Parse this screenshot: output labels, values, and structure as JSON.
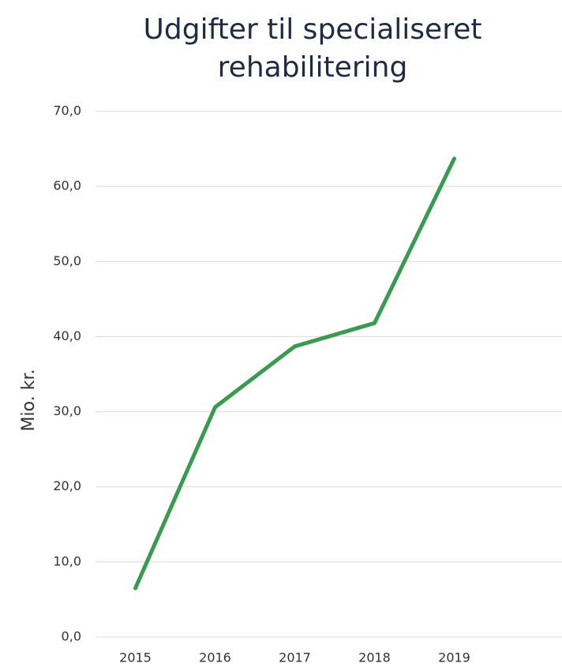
{
  "chart_data": {
    "type": "line",
    "title": "Udgifter til specialiseret rehabilitering",
    "y_label": "Mio. kr.",
    "categories": [
      "2015",
      "2016",
      "2017",
      "2018",
      "2019"
    ],
    "series": [
      {
        "name": "Udgifter",
        "color": "#3a9a4f",
        "values": [
          6.5,
          30.6,
          38.7,
          41.8,
          63.7
        ]
      }
    ],
    "ylim": [
      0,
      70
    ],
    "yticks": [
      {
        "value": 0,
        "label": "0,0"
      },
      {
        "value": 10,
        "label": "10,0"
      },
      {
        "value": 20,
        "label": "20,0"
      },
      {
        "value": 30,
        "label": "30,0"
      },
      {
        "value": 40,
        "label": "40,0"
      },
      {
        "value": 50,
        "label": "50,0"
      },
      {
        "value": 60,
        "label": "60,0"
      },
      {
        "value": 70,
        "label": "70,0"
      }
    ],
    "grid": true
  }
}
